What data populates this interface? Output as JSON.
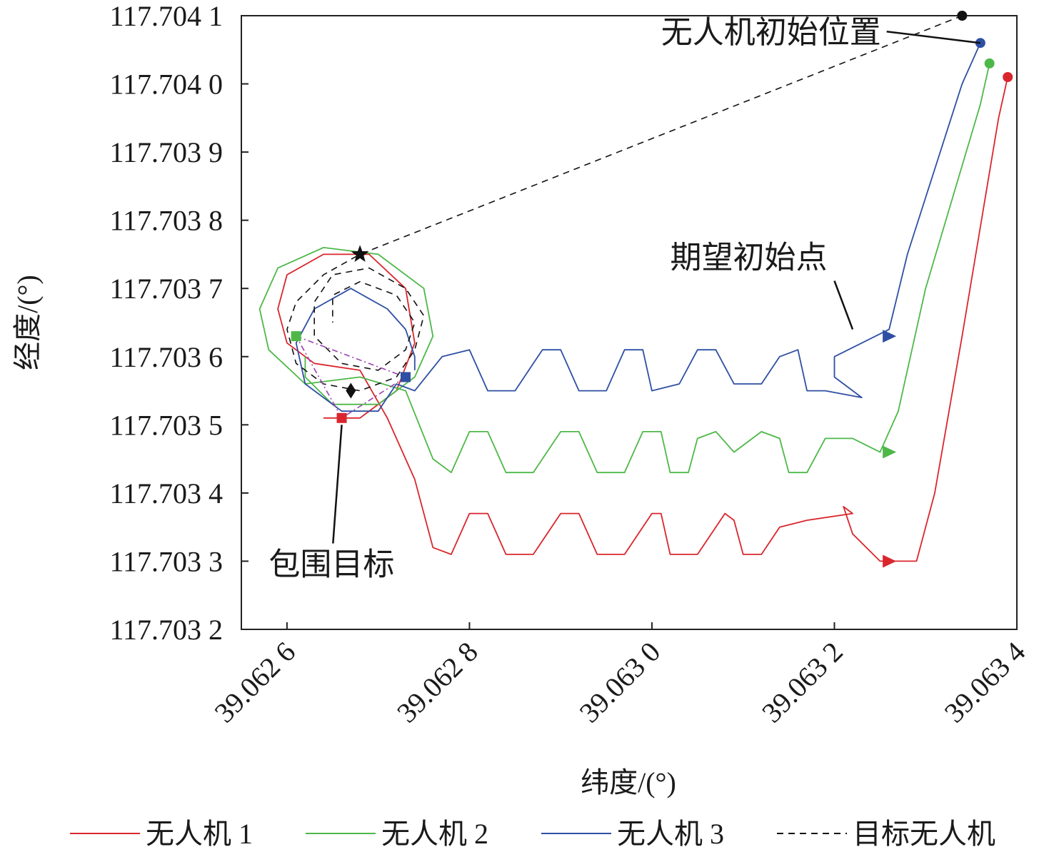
{
  "chart_data": {
    "type": "line",
    "xlabel": "纬度/(°)",
    "ylabel": "经度/(°)",
    "xlim": [
      39.06255,
      39.0634
    ],
    "ylim": [
      117.7032,
      117.7041
    ],
    "x_ticks": [
      39.0626,
      39.0628,
      39.063,
      39.0632,
      39.0634
    ],
    "x_tick_labels": [
      "39.062 6",
      "39.062 8",
      "39.063 0",
      "39.063 2",
      "39.063 4"
    ],
    "y_ticks": [
      117.7032,
      117.7033,
      117.7034,
      117.7035,
      117.7036,
      117.7037,
      117.7038,
      117.7039,
      117.704,
      117.7041
    ],
    "y_tick_labels": [
      "117.703 2",
      "117.703 3",
      "117.703 4",
      "117.703 5",
      "117.703 6",
      "117.703 7",
      "117.703 8",
      "117.703 9",
      "117.704 0",
      "117.704 1"
    ],
    "grid": false,
    "legend_position": "bottom",
    "annotations": [
      {
        "text": "无人机初始位置",
        "x": 39.06301,
        "y": 117.70406,
        "arrow_to": [
          39.06336,
          117.70406
        ]
      },
      {
        "text": "期望初始点",
        "x": 39.06302,
        "y": 117.70373,
        "arrow_to": [
          39.06322,
          117.70364
        ]
      },
      {
        "text": "包围目标",
        "x": 39.06258,
        "y": 117.70328,
        "arrow_to": [
          39.06266,
          117.7035
        ]
      }
    ],
    "series": [
      {
        "name": "无人机 1",
        "color": "#d9262c",
        "line": [
          [
            39.06339,
            117.70401
          ],
          [
            39.06338,
            117.70395
          ],
          [
            39.06334,
            117.70363
          ],
          [
            39.06331,
            117.7034
          ],
          [
            39.06329,
            117.7033
          ],
          [
            39.06325,
            117.7033
          ],
          [
            39.06322,
            117.70334
          ],
          [
            39.06321,
            117.70338
          ],
          [
            39.06322,
            117.70337
          ],
          [
            39.06317,
            117.70336
          ],
          [
            39.06314,
            117.70335
          ],
          [
            39.06312,
            117.70331
          ],
          [
            39.0631,
            117.70331
          ],
          [
            39.06309,
            117.70336
          ],
          [
            39.06308,
            117.70337
          ],
          [
            39.06305,
            117.70331
          ],
          [
            39.06302,
            117.70331
          ],
          [
            39.06301,
            117.70337
          ],
          [
            39.063,
            117.70337
          ],
          [
            39.06297,
            117.70331
          ],
          [
            39.06294,
            117.70331
          ],
          [
            39.06292,
            117.70337
          ],
          [
            39.0629,
            117.70337
          ],
          [
            39.06287,
            117.70331
          ],
          [
            39.06284,
            117.70331
          ],
          [
            39.06282,
            117.70337
          ],
          [
            39.0628,
            117.70337
          ],
          [
            39.06278,
            117.70331
          ],
          [
            39.06276,
            117.70332
          ],
          [
            39.06274,
            117.70342
          ],
          [
            39.06271,
            117.70351
          ],
          [
            39.06268,
            117.70358
          ],
          [
            39.06263,
            117.70359
          ],
          [
            39.0626,
            117.70362
          ],
          [
            39.06259,
            117.70367
          ],
          [
            39.0626,
            117.70372
          ],
          [
            39.06264,
            117.70375
          ],
          [
            39.06269,
            117.70375
          ],
          [
            39.06273,
            117.7037
          ],
          [
            39.06274,
            117.70362
          ],
          [
            39.06272,
            117.70355
          ],
          [
            39.06268,
            117.70351
          ],
          [
            39.06264,
            117.70351
          ]
        ],
        "start": [
          39.06339,
          117.70401
        ],
        "expected_start": [
          39.06326,
          117.7033
        ],
        "end": [
          39.06266,
          117.70351
        ]
      },
      {
        "name": "无人机 2",
        "color": "#4db848",
        "line": [
          [
            39.06337,
            117.70403
          ],
          [
            39.06336,
            117.70397
          ],
          [
            39.0633,
            117.7037
          ],
          [
            39.06327,
            117.70352
          ],
          [
            39.06325,
            117.70346
          ],
          [
            39.06322,
            117.70348
          ],
          [
            39.06319,
            117.70348
          ],
          [
            39.06317,
            117.70343
          ],
          [
            39.06315,
            117.70343
          ],
          [
            39.06314,
            117.70348
          ],
          [
            39.06312,
            117.70349
          ],
          [
            39.06309,
            117.70346
          ],
          [
            39.06307,
            117.70349
          ],
          [
            39.06305,
            117.70348
          ],
          [
            39.06304,
            117.70343
          ],
          [
            39.06302,
            117.70343
          ],
          [
            39.06301,
            117.70349
          ],
          [
            39.06299,
            117.70349
          ],
          [
            39.06297,
            117.70343
          ],
          [
            39.06294,
            117.70343
          ],
          [
            39.06292,
            117.70349
          ],
          [
            39.0629,
            117.70349
          ],
          [
            39.06287,
            117.70343
          ],
          [
            39.06284,
            117.70343
          ],
          [
            39.06282,
            117.70349
          ],
          [
            39.0628,
            117.70349
          ],
          [
            39.06278,
            117.70343
          ],
          [
            39.06276,
            117.70345
          ],
          [
            39.06273,
            117.70355
          ],
          [
            39.06268,
            117.70357
          ],
          [
            39.06262,
            117.70356
          ],
          [
            39.06258,
            117.70361
          ],
          [
            39.06257,
            117.70367
          ],
          [
            39.06259,
            117.70373
          ],
          [
            39.06264,
            117.70376
          ],
          [
            39.0627,
            117.70375
          ],
          [
            39.06275,
            117.7037
          ],
          [
            39.06276,
            117.70363
          ],
          [
            39.06274,
            117.70357
          ],
          [
            39.0627,
            117.70353
          ],
          [
            39.06265,
            117.70353
          ],
          [
            39.06262,
            117.70357
          ],
          [
            39.06262,
            117.7036
          ]
        ],
        "start": [
          39.06337,
          117.70403
        ],
        "expected_start": [
          39.06326,
          117.70346
        ],
        "end": [
          39.06261,
          117.70363
        ]
      },
      {
        "name": "无人机 3",
        "color": "#2e4fa3",
        "line": [
          [
            39.06336,
            117.70406
          ],
          [
            39.06334,
            117.704
          ],
          [
            39.06328,
            117.70375
          ],
          [
            39.06326,
            117.70364
          ],
          [
            39.06323,
            117.70362
          ],
          [
            39.0632,
            117.7036
          ],
          [
            39.0632,
            117.70357
          ],
          [
            39.06323,
            117.70354
          ],
          [
            39.06319,
            117.70355
          ],
          [
            39.06317,
            117.70355
          ],
          [
            39.06316,
            117.70361
          ],
          [
            39.06314,
            117.7036
          ],
          [
            39.06312,
            117.70356
          ],
          [
            39.06309,
            117.70356
          ],
          [
            39.06307,
            117.70361
          ],
          [
            39.06305,
            117.70361
          ],
          [
            39.06303,
            117.70356
          ],
          [
            39.063,
            117.70355
          ],
          [
            39.06299,
            117.70361
          ],
          [
            39.06297,
            117.70361
          ],
          [
            39.06295,
            117.70355
          ],
          [
            39.06292,
            117.70355
          ],
          [
            39.0629,
            117.70361
          ],
          [
            39.06288,
            117.70361
          ],
          [
            39.06285,
            117.70355
          ],
          [
            39.06282,
            117.70355
          ],
          [
            39.0628,
            117.70361
          ],
          [
            39.06277,
            117.7036
          ],
          [
            39.06274,
            117.70355
          ],
          [
            39.06272,
            117.70356
          ],
          [
            39.0627,
            117.70352
          ],
          [
            39.06266,
            117.70352
          ],
          [
            39.06262,
            117.70356
          ],
          [
            39.06261,
            117.70362
          ],
          [
            39.06263,
            117.70367
          ],
          [
            39.06267,
            117.7037
          ],
          [
            39.06271,
            117.70367
          ],
          [
            39.06273,
            117.70364
          ],
          [
            39.06274,
            117.7036
          ],
          [
            39.06274,
            117.70358
          ]
        ],
        "start": [
          39.06336,
          117.70406
        ],
        "expected_start": [
          39.06326,
          117.70363
        ],
        "end": [
          39.06273,
          117.70357
        ]
      },
      {
        "name": "目标无人机",
        "color": "#111111",
        "line": [
          [
            39.06334,
            117.7041
          ],
          [
            39.06268,
            117.70375
          ],
          [
            39.06264,
            117.70372
          ],
          [
            39.06261,
            117.70368
          ],
          [
            39.0626,
            117.70364
          ],
          [
            39.06261,
            117.70359
          ],
          [
            39.06264,
            117.70356
          ],
          [
            39.06268,
            117.70355
          ],
          [
            39.06272,
            117.70357
          ],
          [
            39.06274,
            117.70361
          ],
          [
            39.06275,
            117.70366
          ],
          [
            39.06273,
            117.7037
          ],
          [
            39.06269,
            117.70373
          ],
          [
            39.06265,
            117.70372
          ],
          [
            39.06263,
            117.70368
          ],
          [
            39.06263,
            117.70363
          ],
          [
            39.06266,
            117.70359
          ],
          [
            39.0627,
            117.70358
          ],
          [
            39.06273,
            117.70361
          ],
          [
            39.06274,
            117.70365
          ],
          [
            39.06272,
            117.70369
          ],
          [
            39.06268,
            117.70371
          ],
          [
            39.06265,
            117.70369
          ],
          [
            39.06265,
            117.70365
          ]
        ],
        "start": [
          39.06334,
          117.7041
        ],
        "expected_start": [
          39.06268,
          117.70375
        ],
        "end": [
          39.06267,
          117.70355
        ]
      }
    ],
    "enclosure_links": [
      [
        [
          39.06266,
          117.70351
        ],
        [
          39.06261,
          117.70363
        ]
      ],
      [
        [
          39.06261,
          117.70363
        ],
        [
          39.06273,
          117.70357
        ]
      ],
      [
        [
          39.06273,
          117.70357
        ],
        [
          39.06266,
          117.70351
        ]
      ]
    ]
  }
}
